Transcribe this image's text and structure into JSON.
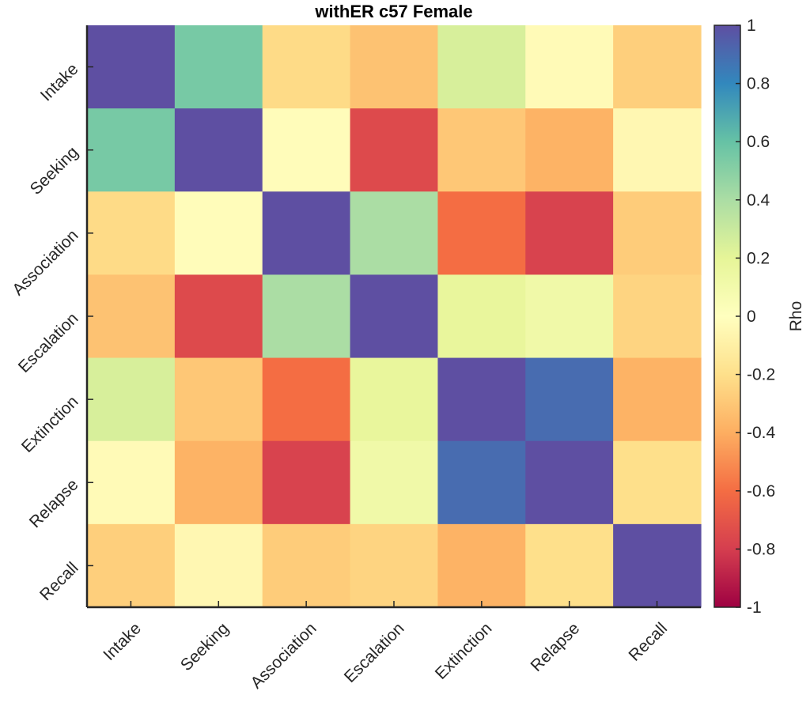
{
  "chart_data": {
    "type": "heatmap",
    "title": "withER c57 Female",
    "variables": [
      "Intake",
      "Seeking",
      "Association",
      "Escalation",
      "Extinction",
      "Relapse",
      "Recall"
    ],
    "matrix": [
      [
        1.0,
        0.55,
        -0.22,
        -0.32,
        0.25,
        -0.03,
        -0.27
      ],
      [
        0.55,
        1.0,
        -0.02,
        -0.75,
        -0.3,
        -0.38,
        -0.05
      ],
      [
        -0.22,
        -0.02,
        1.0,
        0.4,
        -0.6,
        -0.78,
        -0.28
      ],
      [
        -0.32,
        -0.75,
        0.4,
        1.0,
        0.18,
        0.12,
        -0.25
      ],
      [
        0.25,
        -0.3,
        -0.6,
        0.18,
        1.0,
        0.9,
        -0.38
      ],
      [
        -0.03,
        -0.38,
        -0.78,
        0.12,
        0.9,
        1.0,
        -0.2
      ],
      [
        -0.27,
        -0.05,
        -0.28,
        -0.25,
        -0.38,
        -0.2,
        1.0
      ]
    ],
    "colorbar": {
      "label": "Rho",
      "range": [
        -1,
        1
      ],
      "ticks": [
        -1,
        -0.8,
        -0.6,
        -0.4,
        -0.2,
        0,
        0.2,
        0.4,
        0.6,
        0.8,
        1
      ],
      "tick_labels": [
        "-1",
        "-0.8",
        "-0.6",
        "-0.4",
        "-0.2",
        "0",
        "0.2",
        "0.4",
        "0.6",
        "0.8",
        "1"
      ],
      "colormap": "spectral",
      "colormap_stops": [
        "#9e0142",
        "#d53e4f",
        "#f46d43",
        "#fdae61",
        "#fee08b",
        "#ffffbf",
        "#e6f598",
        "#abdda4",
        "#66c2a5",
        "#3288bd",
        "#5e4fa2"
      ]
    },
    "grid": false
  }
}
